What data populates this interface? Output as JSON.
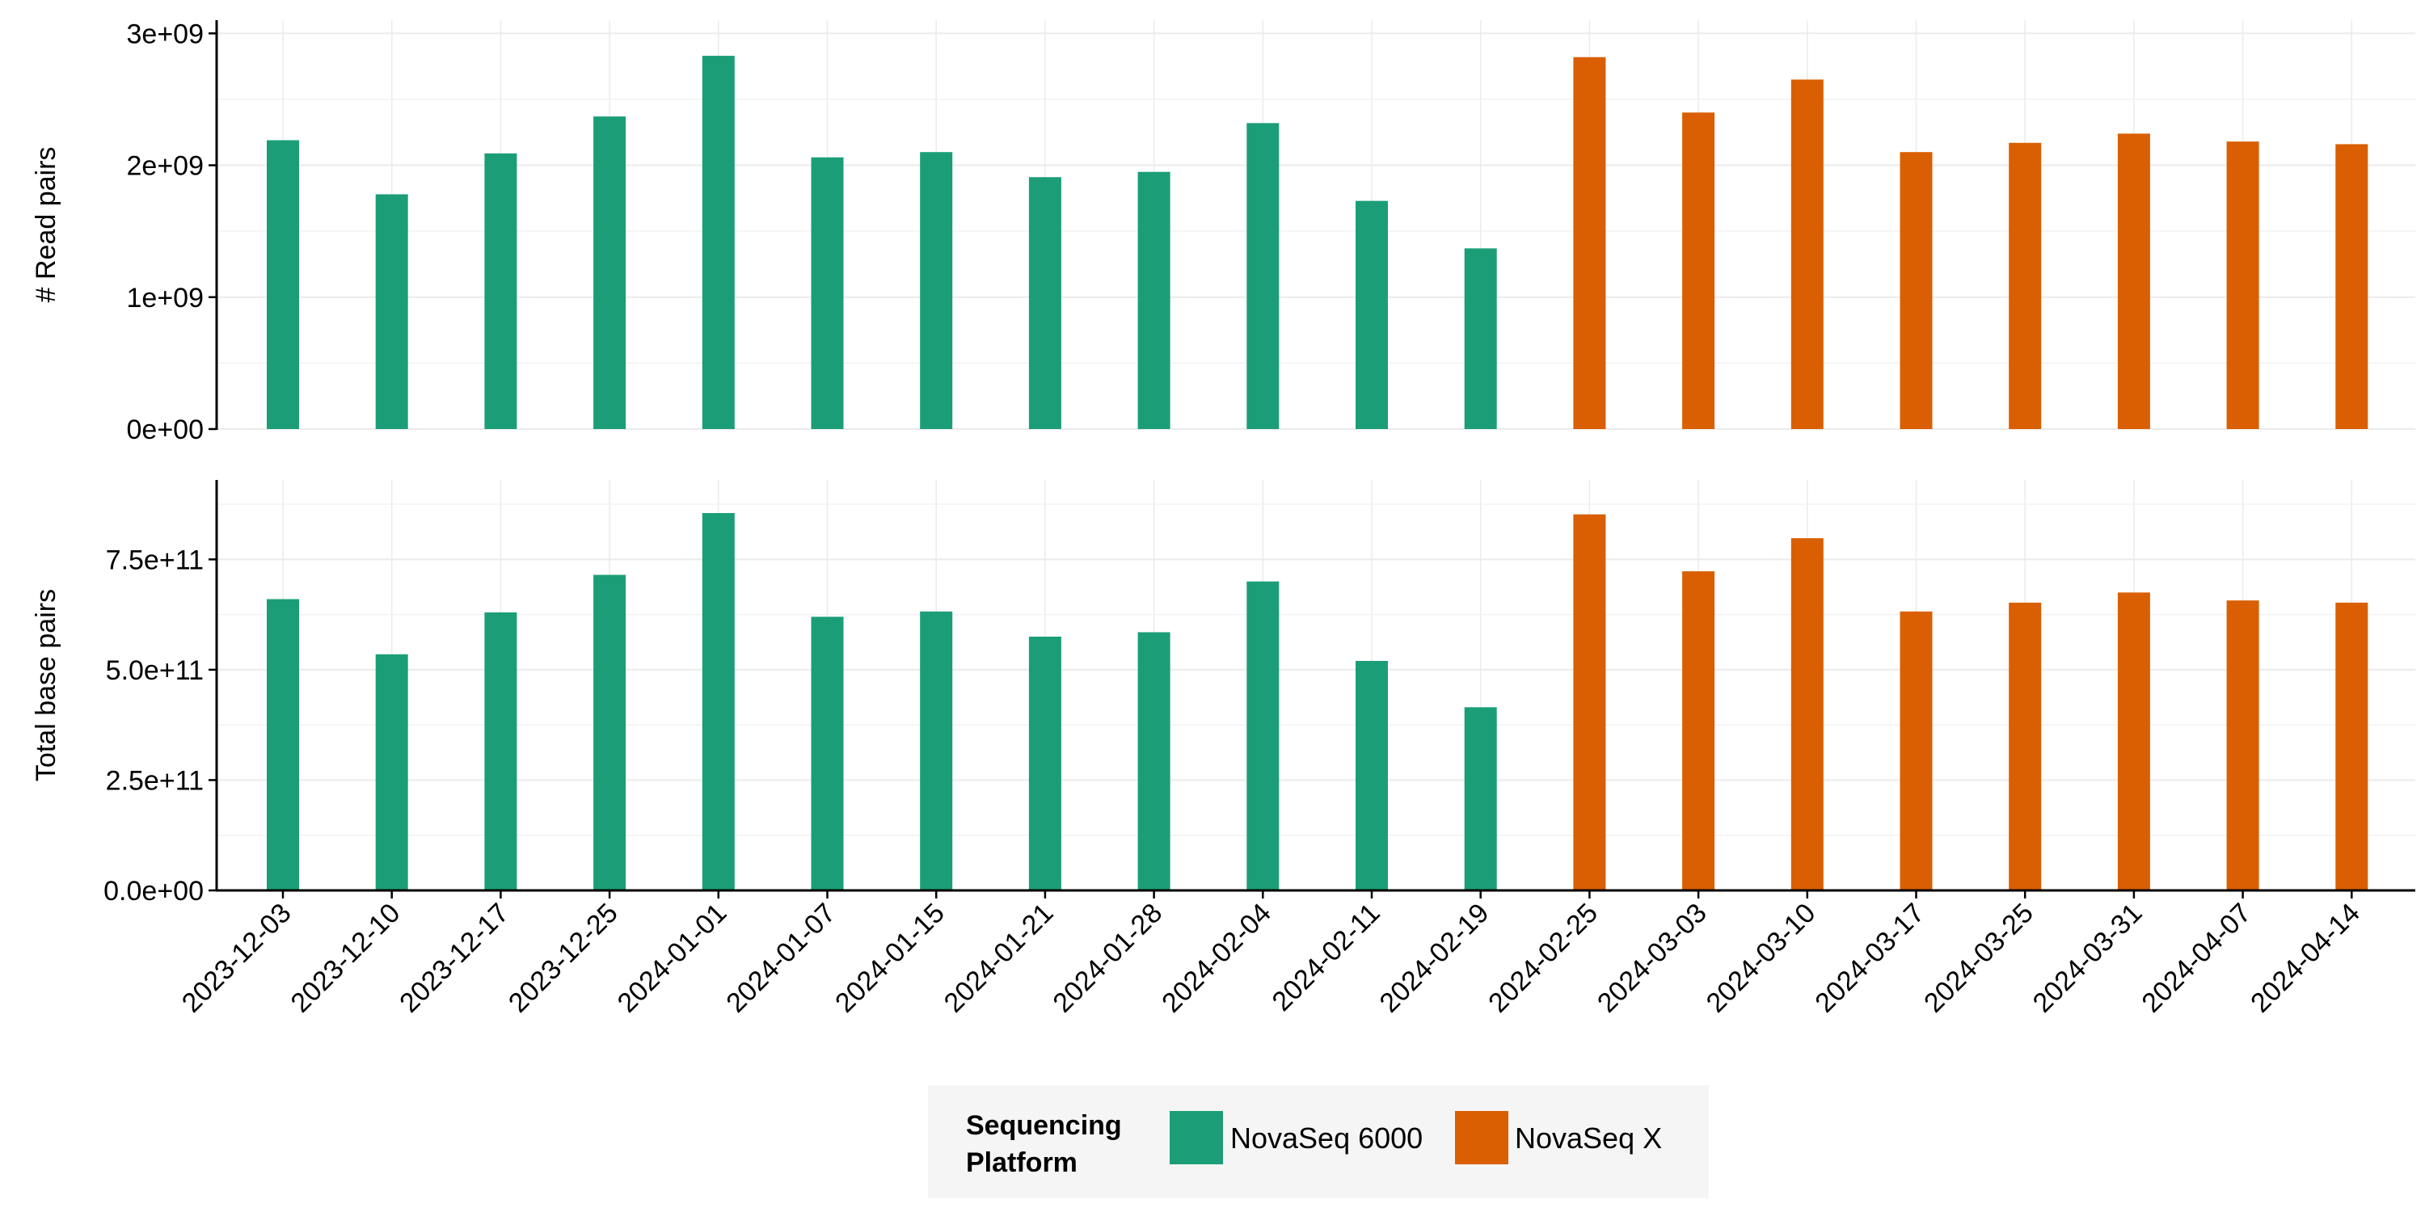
{
  "chart_data": {
    "type": "bar",
    "categories": [
      "2023-12-03",
      "2023-12-10",
      "2023-12-17",
      "2023-12-25",
      "2024-01-01",
      "2024-01-07",
      "2024-01-15",
      "2024-01-21",
      "2024-01-28",
      "2024-02-04",
      "2024-02-11",
      "2024-02-19",
      "2024-02-25",
      "2024-03-03",
      "2024-03-10",
      "2024-03-17",
      "2024-03-25",
      "2024-03-31",
      "2024-04-07",
      "2024-04-14"
    ],
    "platform": [
      "NovaSeq 6000",
      "NovaSeq 6000",
      "NovaSeq 6000",
      "NovaSeq 6000",
      "NovaSeq 6000",
      "NovaSeq 6000",
      "NovaSeq 6000",
      "NovaSeq 6000",
      "NovaSeq 6000",
      "NovaSeq 6000",
      "NovaSeq 6000",
      "NovaSeq 6000",
      "NovaSeq X",
      "NovaSeq X",
      "NovaSeq X",
      "NovaSeq X",
      "NovaSeq X",
      "NovaSeq X",
      "NovaSeq X",
      "NovaSeq X"
    ],
    "panels": [
      {
        "ylabel": "# Read pairs",
        "ylim": [
          0,
          3100000000
        ],
        "yticks": [
          0,
          1000000000,
          2000000000,
          3000000000
        ],
        "yticklabels": [
          "0e+00",
          "1e+09",
          "2e+09",
          "3e+09"
        ],
        "values": [
          2190000000,
          1780000000,
          2090000000,
          2370000000,
          2830000000,
          2060000000,
          2100000000,
          1910000000,
          1950000000,
          2320000000,
          1730000000,
          1370000000,
          2820000000,
          2400000000,
          2650000000,
          2100000000,
          2170000000,
          2240000000,
          2180000000,
          2160000000
        ]
      },
      {
        "ylabel": "Total base pairs",
        "ylim": [
          0,
          930000000000
        ],
        "yticks": [
          0,
          250000000000,
          500000000000,
          750000000000
        ],
        "yticklabels": [
          "0.0e+00",
          "2.5e+11",
          "5.0e+11",
          "7.5e+11"
        ],
        "values": [
          660000000000,
          535000000000,
          630000000000,
          715000000000,
          855000000000,
          620000000000,
          632000000000,
          575000000000,
          585000000000,
          700000000000,
          520000000000,
          415000000000,
          852000000000,
          723000000000,
          798000000000,
          632000000000,
          652000000000,
          675000000000,
          657000000000,
          652000000000
        ]
      }
    ],
    "legend": {
      "title": "Sequencing\nPlatform",
      "position": "bottom",
      "entries": [
        {
          "name": "NovaSeq 6000",
          "color": "#1b9e77"
        },
        {
          "name": "NovaSeq X",
          "color": "#d95f02"
        }
      ]
    },
    "grid": true,
    "colors": {
      "NovaSeq 6000": "#1b9e77",
      "NovaSeq X": "#d95f02",
      "grid": "#ebebeb",
      "legend_bg": "#f5f5f5"
    }
  }
}
